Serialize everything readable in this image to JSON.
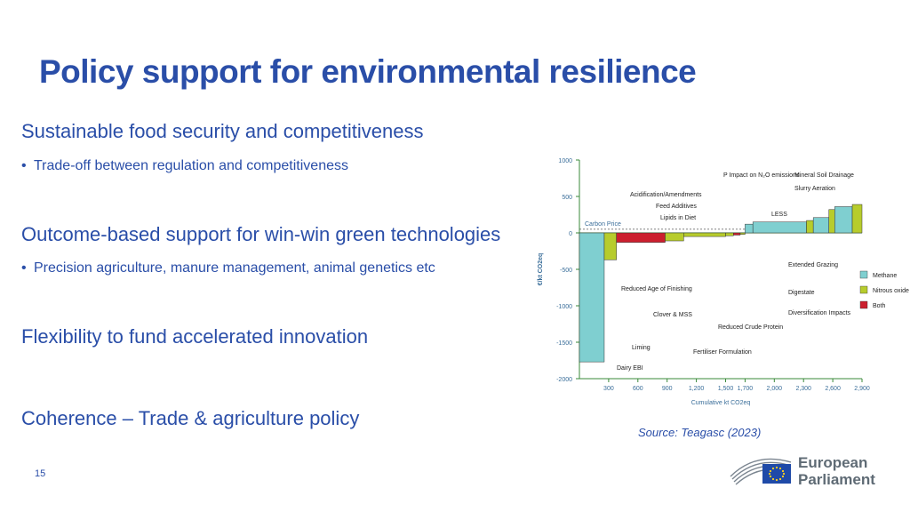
{
  "slide": {
    "title": "Policy support for environmental resilience",
    "sections": [
      {
        "heading": "Sustainable food security and competitiveness",
        "bullet": "Trade-off between regulation and competitiveness"
      },
      {
        "heading": "Outcome-based support for win-win green technologies",
        "bullet": "Precision agriculture, manure management, animal genetics etc"
      },
      {
        "heading": "Flexibility to fund accelerated innovation"
      },
      {
        "heading": "Coherence – Trade & agriculture policy"
      }
    ],
    "source": "Source: Teagasc (2023)",
    "page_number": "15",
    "logo": {
      "line1": "European",
      "line2": "Parliament",
      "icon": "eu-flag-icon"
    }
  },
  "chart_data": {
    "type": "bar",
    "subtype": "marginal-abatement-cost-curve",
    "xlabel": "Cumulative kt CO2eq",
    "ylabel": "€/kt CO2eq",
    "x_ticks": [
      "300",
      "600",
      "900",
      "1,200",
      "1,500",
      "1,700",
      "2,000",
      "2,300",
      "2,600",
      "2,900"
    ],
    "y_ticks": [
      "1000",
      "500",
      "0",
      "-500",
      "-1000",
      "-1500",
      "-2000"
    ],
    "ylim": [
      -2000,
      1000
    ],
    "xlim": [
      0,
      2900
    ],
    "carbon_price_label": "Carbon Price",
    "carbon_price": 50,
    "colors": {
      "Methane": "#7fcfd0",
      "Nitrous oxide": "#b7cc2c",
      "Both": "#cc1f2e",
      "axis": "#3a8a3a"
    },
    "legend": [
      "Methane",
      "Nitrous oxide",
      "Both"
    ],
    "legend_position": "right",
    "bars": [
      {
        "label": "Dairy EBI",
        "x0": 0,
        "x1": 255,
        "value": -1770,
        "gas": "Methane"
      },
      {
        "label": "Liming",
        "x0": 255,
        "x1": 380,
        "value": -370,
        "gas": "Nitrous oxide"
      },
      {
        "label": "Reduced Age of Finishing",
        "x0": 380,
        "x1": 880,
        "value": -130,
        "gas": "Both"
      },
      {
        "label": "Clover & MSS",
        "x0": 880,
        "x1": 1070,
        "value": -110,
        "gas": "Nitrous oxide"
      },
      {
        "label": "Fertiliser Formulation",
        "x0": 1070,
        "x1": 1500,
        "value": -50,
        "gas": "Nitrous oxide"
      },
      {
        "label": "Reduced Crude Protein",
        "x0": 1500,
        "x1": 1580,
        "value": -40,
        "gas": "Nitrous oxide"
      },
      {
        "label": "Diversification Impacts",
        "x0": 1580,
        "x1": 1650,
        "value": -30,
        "gas": "Both"
      },
      {
        "label": "Digestate",
        "x0": 1650,
        "x1": 1700,
        "value": -20,
        "gas": "Nitrous oxide"
      },
      {
        "label": "Extended Grazing",
        "x0": 1700,
        "x1": 1780,
        "value": 120,
        "gas": "Methane"
      },
      {
        "label": "Lipids in Diet",
        "x0": 1780,
        "x1": 2330,
        "value": 150,
        "gas": "Methane"
      },
      {
        "label": "LESS",
        "x0": 2330,
        "x1": 2400,
        "value": 170,
        "gas": "Nitrous oxide"
      },
      {
        "label": "Feed Additives",
        "x0": 2400,
        "x1": 2560,
        "value": 210,
        "gas": "Methane"
      },
      {
        "label": "Acidification/Amendments",
        "x0": 2560,
        "x1": 2620,
        "value": 320,
        "gas": "Nitrous oxide"
      },
      {
        "label": "P Impact on N2O emissions",
        "x0": 2620,
        "x1": 2800,
        "value": 360,
        "gas": "Methane"
      },
      {
        "label": "Slurry Aeration",
        "x0": 2800,
        "x1": 2900,
        "value": 390,
        "gas": "Nitrous oxide"
      }
    ],
    "top_labels": [
      "P Impact on N₂O emissions",
      "Mineral Soil Drainage",
      "Slurry Aeration",
      "Acidification/Amendments",
      "Feed Additives",
      "Lipids in Diet",
      "LESS"
    ],
    "right_labels": [
      "Extended Grazing",
      "Digestate",
      "Diversification Impacts"
    ],
    "bottom_labels": [
      "Reduced Age of Finishing",
      "Clover & MSS",
      "Reduced Crude Protein",
      "Fertiliser Formulation",
      "Liming",
      "Dairy EBI"
    ]
  }
}
